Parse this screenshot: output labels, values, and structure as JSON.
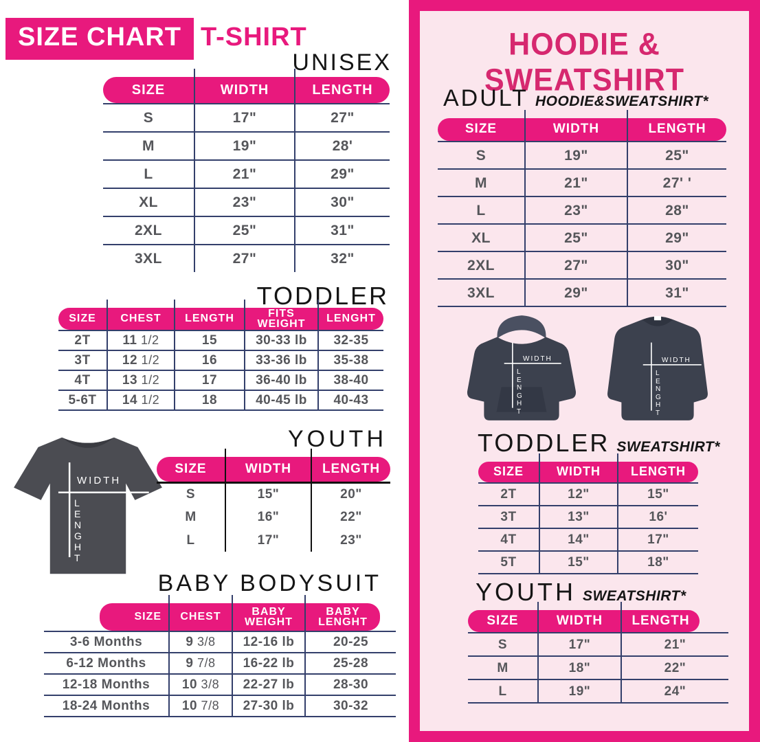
{
  "colors": {
    "pink": "#E8197D",
    "panel_title_pink": "#D6286F",
    "panel_background": "#FBE6ED",
    "table_line_navy": "#333F6B",
    "table_text_gray": "#55565A",
    "heading_black": "#151515",
    "tshirt_gray": "#4B4C52",
    "hoodie_navy": "#3C414E"
  },
  "left": {
    "badge": "SIZE CHART",
    "product": "T-SHIRT",
    "unisex": {
      "title": "UNISEX",
      "headers": [
        "SIZE",
        "WIDTH",
        "LENGTH"
      ],
      "rows": [
        [
          "S",
          "17\"",
          "27\""
        ],
        [
          "M",
          "19\"",
          "28'"
        ],
        [
          "L",
          "21\"",
          "29\""
        ],
        [
          "XL",
          "23\"",
          "30\""
        ],
        [
          "2XL",
          "25\"",
          "31\""
        ],
        [
          "3XL",
          "27\"",
          "32\""
        ]
      ]
    },
    "toddler": {
      "title": "TODDLER",
      "headers": [
        "SIZE",
        "CHEST",
        "LENGTH",
        "FITS\nWEIGHT",
        "LENGHT"
      ],
      "rows": [
        [
          "2T",
          "11 1/2",
          "15",
          "30-33 lb",
          "32-35"
        ],
        [
          "3T",
          "12 1/2",
          "16",
          "33-36 lb",
          "35-38"
        ],
        [
          "4T",
          "13 1/2",
          "17",
          "36-40 lb",
          "38-40"
        ],
        [
          "5-6T",
          "14 1/2",
          "18",
          "40-45 lb",
          "40-43"
        ]
      ]
    },
    "youth": {
      "title": "YOUTH",
      "headers": [
        "SIZE",
        "WIDTH",
        "LENGTH"
      ],
      "rows": [
        [
          "S",
          "15\"",
          "20\""
        ],
        [
          "M",
          "16\"",
          "22\""
        ],
        [
          "L",
          "17\"",
          "23\""
        ]
      ]
    },
    "baby": {
      "title": "BABY BODYSUIT",
      "headers": [
        "SIZE",
        "CHEST",
        "BABY\nWEIGHT",
        "BABY\nLENGHT"
      ],
      "rows": [
        [
          "3-6 Months",
          "9 3/8",
          "12-16 lb",
          "20-25"
        ],
        [
          "6-12 Months",
          "9 7/8",
          "16-22 lb",
          "25-28"
        ],
        [
          "12-18 Months",
          "10 3/8",
          "22-27 lb",
          "28-30"
        ],
        [
          "18-24 Months",
          "10 7/8",
          "27-30 lb",
          "30-32"
        ]
      ]
    }
  },
  "right": {
    "title": "HOODIE & SWEATSHIRT",
    "adult": {
      "title": "ADULT",
      "subtitle": "HOODIE&SWEATSHIRT*",
      "headers": [
        "SIZE",
        "WIDTH",
        "LENGTH"
      ],
      "rows": [
        [
          "S",
          "19\"",
          "25\""
        ],
        [
          "M",
          "21\"",
          "27' '"
        ],
        [
          "L",
          "23\"",
          "28\""
        ],
        [
          "XL",
          "25\"",
          "29\""
        ],
        [
          "2XL",
          "27\"",
          "30\""
        ],
        [
          "3XL",
          "29\"",
          "31\""
        ]
      ]
    },
    "toddler": {
      "title": "TODDLER",
      "subtitle": "SWEATSHIRT*",
      "headers": [
        "SIZE",
        "WIDTH",
        "LENGTH"
      ],
      "rows": [
        [
          "2T",
          "12\"",
          "15\""
        ],
        [
          "3T",
          "13\"",
          "16'"
        ],
        [
          "4T",
          "14\"",
          "17\""
        ],
        [
          "5T",
          "15\"",
          "18\""
        ]
      ]
    },
    "youth": {
      "title": "YOUTH",
      "subtitle": "SWEATSHIRT*",
      "headers": [
        "SIZE",
        "WIDTH",
        "LENGTH"
      ],
      "rows": [
        [
          "S",
          "17\"",
          "21\""
        ],
        [
          "M",
          "18\"",
          "22\""
        ],
        [
          "L",
          "19\"",
          "24\""
        ]
      ]
    }
  },
  "garment": {
    "width_label": "WIDTH",
    "length_label": "LENGHT"
  }
}
